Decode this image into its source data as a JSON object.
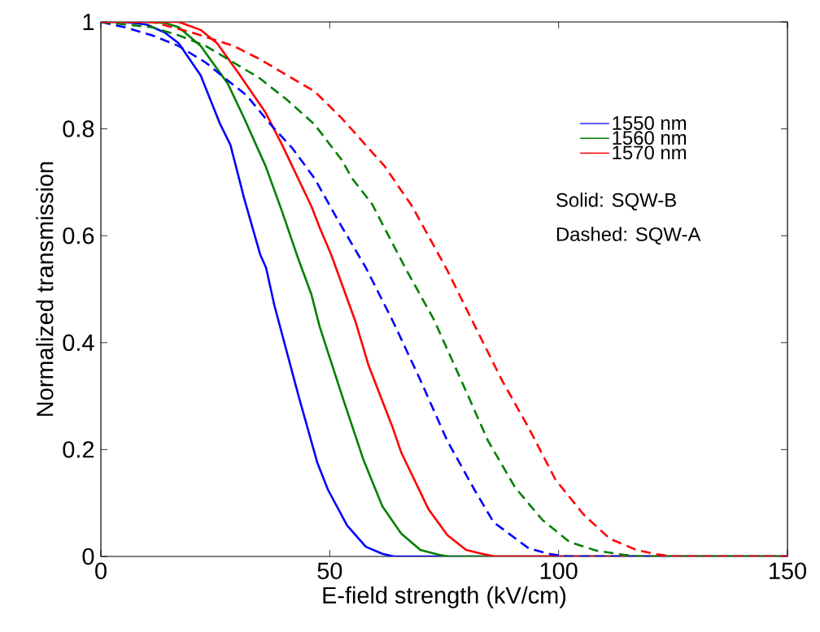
{
  "chart_data": {
    "type": "line",
    "xlabel": "E-field strength (kV/cm)",
    "ylabel": "Normalized transmission",
    "xlim": [
      0,
      150
    ],
    "ylim": [
      0,
      1
    ],
    "xticks": [
      0,
      50,
      100,
      150
    ],
    "yticks": [
      0,
      0.2,
      0.4,
      0.6,
      0.8,
      1
    ],
    "legend": "top right",
    "annotations": [
      "Solid:     SQW-B",
      "Dashed: SQW-A"
    ],
    "series": [
      {
        "name": "1550 nm",
        "color": "#0000ff",
        "line_style": "solid",
        "x": [
          0,
          5,
          10,
          14,
          17,
          21.8,
          26,
          28.3,
          31.3,
          34.8,
          36.1,
          37.9,
          43.2,
          47.3,
          49.6,
          53.8,
          57.9,
          61.5,
          64,
          150
        ],
        "values": [
          1,
          1,
          0.995,
          0.98,
          0.96,
          0.9,
          0.81,
          0.77,
          0.67,
          0.565,
          0.54,
          0.47,
          0.3,
          0.175,
          0.125,
          0.058,
          0.018,
          0.005,
          0,
          0
        ]
      },
      {
        "name": "1560 nm",
        "color": "#008000",
        "line_style": "solid",
        "x": [
          0,
          5,
          10,
          14,
          17,
          21.8,
          27.7,
          31.3,
          36,
          39.6,
          43.2,
          46,
          47.8,
          53.1,
          57.4,
          61.5,
          65.6,
          69.8,
          73.9,
          76,
          150
        ],
        "values": [
          1,
          1,
          1,
          0.998,
          0.99,
          0.955,
          0.885,
          0.82,
          0.73,
          0.645,
          0.555,
          0.49,
          0.43,
          0.29,
          0.18,
          0.094,
          0.043,
          0.012,
          0.003,
          0,
          0
        ]
      },
      {
        "name": "1570 nm",
        "color": "#ff0000",
        "line_style": "solid",
        "x": [
          0,
          5,
          10,
          17,
          21.8,
          25.4,
          30,
          36,
          39.6,
          46,
          47.8,
          50.3,
          55.6,
          58.5,
          63.8,
          65.6,
          71.6,
          75.7,
          79.8,
          83.3,
          86,
          150
        ],
        "values": [
          1,
          1,
          1,
          1,
          0.985,
          0.96,
          0.905,
          0.83,
          0.77,
          0.655,
          0.615,
          0.565,
          0.44,
          0.357,
          0.24,
          0.195,
          0.088,
          0.04,
          0.012,
          0.005,
          0,
          0
        ]
      },
      {
        "color": "#0000ff",
        "line_style": "dashed",
        "x": [
          0,
          5.2,
          11.2,
          17,
          22.9,
          27.2,
          31.8,
          37.1,
          41.9,
          46.7,
          52,
          57.9,
          63.8,
          69.8,
          75.7,
          81.6,
          85.8,
          93.5,
          98.3,
          102,
          150
        ],
        "values": [
          1,
          0.99,
          0.975,
          0.955,
          0.924,
          0.894,
          0.863,
          0.808,
          0.763,
          0.707,
          0.626,
          0.54,
          0.44,
          0.33,
          0.216,
          0.125,
          0.064,
          0.015,
          0.004,
          0,
          0
        ]
      },
      {
        "color": "#008000",
        "line_style": "dashed",
        "x": [
          0,
          11.2,
          17,
          22.9,
          29,
          34.8,
          40.7,
          46.7,
          52.6,
          54.9,
          59.2,
          66.8,
          72.7,
          78.7,
          84.6,
          90.5,
          96.5,
          102.4,
          108.2,
          114.3,
          118,
          150
        ],
        "values": [
          1,
          0.99,
          0.975,
          0.955,
          0.924,
          0.894,
          0.854,
          0.808,
          0.742,
          0.707,
          0.66,
          0.535,
          0.444,
          0.33,
          0.216,
          0.129,
          0.068,
          0.027,
          0.011,
          0.003,
          0,
          0
        ]
      },
      {
        "color": "#ff0000",
        "line_style": "dashed",
        "x": [
          0,
          11.2,
          20,
          29,
          34.8,
          40.7,
          46.7,
          52.6,
          62,
          68,
          75.7,
          81.6,
          87.6,
          93.5,
          99.3,
          105.4,
          111.2,
          117.1,
          121.4,
          125,
          150
        ],
        "values": [
          1,
          1,
          0.98,
          0.955,
          0.93,
          0.9,
          0.87,
          0.82,
          0.73,
          0.655,
          0.535,
          0.433,
          0.33,
          0.24,
          0.144,
          0.079,
          0.033,
          0.012,
          0.004,
          0,
          0
        ]
      }
    ]
  }
}
